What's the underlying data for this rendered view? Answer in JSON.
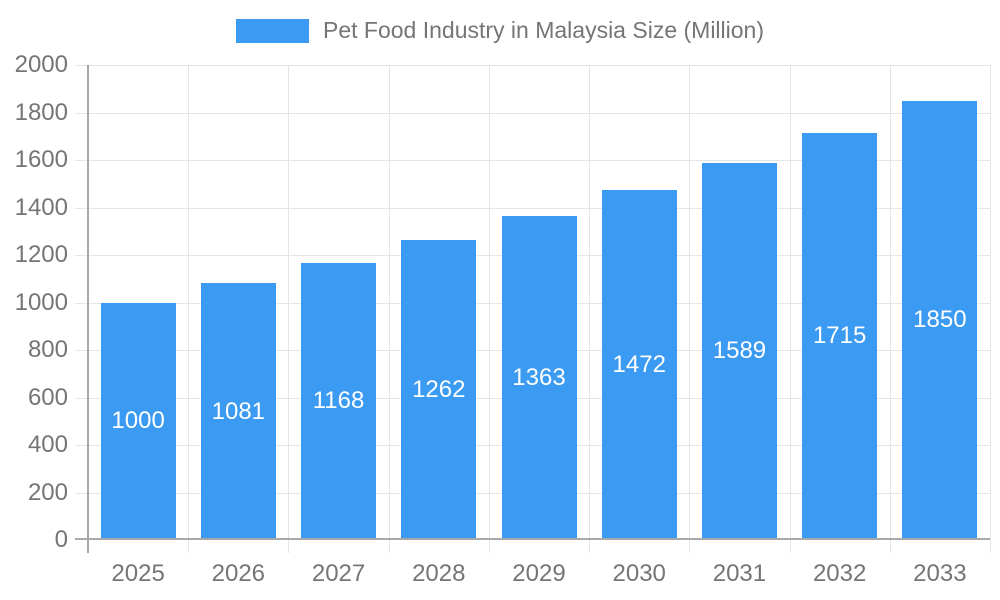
{
  "legend": {
    "label": "Pet Food Industry in Malaysia Size (Million)"
  },
  "colors": {
    "bar": "#3b9af1",
    "bar_label_text": "#ffffff",
    "axis_line": "#a6a6a6",
    "gridline": "#e5e5e5",
    "tick_text": "#757575",
    "background": "#ffffff"
  },
  "chart_data": {
    "type": "bar",
    "title": "Pet Food Industry in Malaysia Size (Million)",
    "categories": [
      "2025",
      "2026",
      "2027",
      "2028",
      "2029",
      "2030",
      "2031",
      "2032",
      "2033"
    ],
    "values": [
      1000,
      1081,
      1168,
      1262,
      1363,
      1472,
      1589,
      1715,
      1850
    ],
    "xlabel": "",
    "ylabel": "",
    "ylim": [
      0,
      2000
    ],
    "yticks": [
      0,
      200,
      400,
      600,
      800,
      1000,
      1200,
      1400,
      1600,
      1800,
      2000
    ],
    "grid": true,
    "legend_position": "top",
    "value_labels": "inside-center",
    "bar_label_values": [
      "1000",
      "1081",
      "1168",
      "1262",
      "1363",
      "1472",
      "1589",
      "1715",
      "1850"
    ]
  }
}
